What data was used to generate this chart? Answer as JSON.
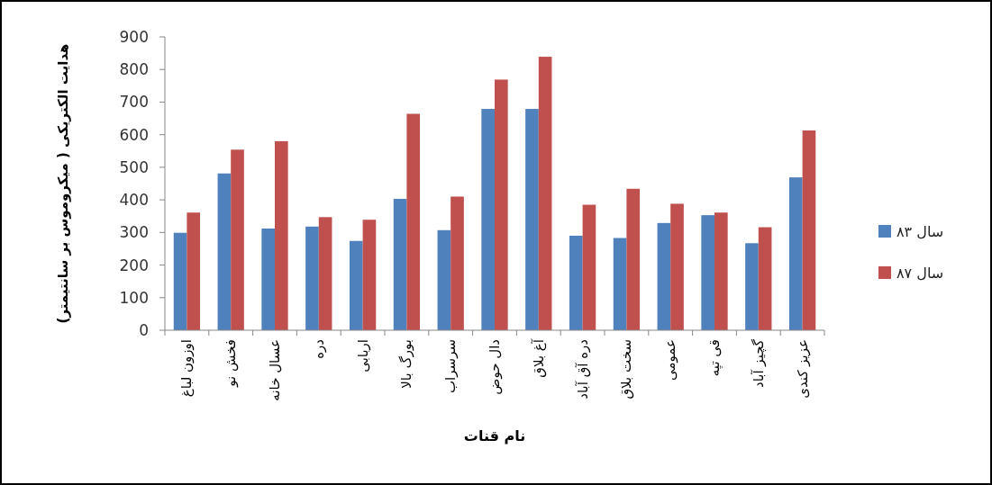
{
  "chart_data": {
    "type": "bar",
    "xlabel": "نام قنات",
    "ylabel": "هدایت الکتریکی ( میکروموس بر سانتیمتر)",
    "categories": [
      "اوزون لباغ",
      "فخش نو",
      "عسال خانه",
      "دره",
      "اربابی",
      "بورگ بالا",
      "سرسراب",
      "دال حوض",
      "آغ بلاق",
      "دره آق آباد",
      "سخت بلاق",
      "عمومی",
      "قی تپه",
      "گچیز آباد",
      "عزیز کندی"
    ],
    "series": [
      {
        "name": "سال ۸۳",
        "color": "#4f81bd",
        "values": [
          299,
          481,
          312,
          318,
          274,
          403,
          307,
          679,
          679,
          290,
          283,
          329,
          353,
          267,
          469
        ]
      },
      {
        "name": "سال ۸۷",
        "color": "#c0504d",
        "values": [
          361,
          554,
          580,
          347,
          339,
          664,
          410,
          769,
          839,
          385,
          434,
          388,
          361,
          316,
          613
        ]
      }
    ],
    "ylim": [
      0,
      900
    ],
    "yticks": [
      0,
      100,
      200,
      300,
      400,
      500,
      600,
      700,
      800,
      900
    ],
    "grid": false,
    "legend": "right"
  }
}
